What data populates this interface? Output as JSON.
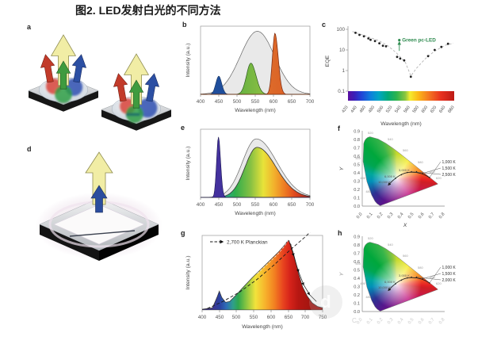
{
  "figure_title": "图2.  LED发射白光的不同方法",
  "colors": {
    "blue_peak": "#1f4e9c",
    "green_peak": "#2f9e44",
    "orange_peak": "#e0641f",
    "envelope_gray": "#e7e7e7",
    "annotation_green": "#2e8b4f",
    "yellow_arrow": "#f1eda5"
  },
  "watermark": {
    "letter": "d",
    "stray_mark": "C"
  },
  "panels": {
    "a": {
      "label": "a"
    },
    "b": {
      "label": "b",
      "xlabel": "Wavelength (nm)",
      "ylabel": "Intensity (a.u.)",
      "x_ticks": [
        "400",
        "450",
        "500",
        "550",
        "600",
        "650",
        "700"
      ]
    },
    "c": {
      "label": "c",
      "xlabel": "Wavelength (nm)",
      "ylabel": "EQE",
      "y_ticks": [
        "100",
        "10",
        "1",
        "0.1"
      ],
      "x_ticks": [
        "420",
        "440",
        "460",
        "480",
        "500",
        "520",
        "540",
        "560",
        "580",
        "600",
        "620",
        "640",
        "660"
      ],
      "annotation": "Green pc-LED"
    },
    "d": {
      "label": "d"
    },
    "e": {
      "label": "e",
      "xlabel": "Wavelength (nm)",
      "ylabel": "Intensity (a.u.)",
      "x_ticks": [
        "400",
        "450",
        "500",
        "550",
        "600",
        "650",
        "700"
      ]
    },
    "f": {
      "label": "f",
      "xlabel": "X",
      "ylabel": "Y",
      "x_ticks": [
        "0.0",
        "0.1",
        "0.2",
        "0.3",
        "0.4",
        "0.5",
        "0.6",
        "0.7",
        "0.8"
      ],
      "y_ticks": [
        "0.9",
        "0.8",
        "0.7",
        "0.6",
        "0.5",
        "0.4",
        "0.3",
        "0.2",
        "0.1",
        "0.0"
      ],
      "callouts": [
        "1,000 K",
        "1,500 K",
        "2,500 K"
      ],
      "locus_labels": [
        "3,000 K",
        "6,000 K",
        "10,000 K"
      ],
      "spectral_labels": [
        "520",
        "540",
        "560",
        "580",
        "600",
        "620",
        "500",
        "490",
        "480"
      ]
    },
    "g": {
      "label": "g",
      "xlabel": "Wavelength (nm)",
      "ylabel": "Intensity (a.u.)",
      "legend": "2,700 K Planckian",
      "x_ticks": [
        "400",
        "450",
        "500",
        "550",
        "600",
        "650",
        "700",
        "750"
      ]
    },
    "h": {
      "label": "h",
      "ylabel": "Y",
      "x_ticks": [
        "0.0",
        "0.1",
        "0.2",
        "0.3",
        "0.4",
        "0.5",
        "0.6",
        "0.7",
        "0.8"
      ],
      "y_ticks": [
        "0.9",
        "0.8",
        "0.7",
        "0.6",
        "0.5",
        "0.4",
        "0.3",
        "0.2",
        "0.1",
        "0.0"
      ],
      "callouts": [
        "1,000 K",
        "1,500 K",
        "2,000 K"
      ],
      "locus_labels": [
        "3,000 K",
        "6,000 K",
        "10,000 K"
      ],
      "spectral_labels": [
        "520",
        "540",
        "560",
        "580",
        "600",
        "620",
        "500",
        "490",
        "480"
      ]
    }
  },
  "chart_data": [
    {
      "panel": "b",
      "type": "area",
      "xlabel": "Wavelength (nm)",
      "ylabel": "Intensity (a.u.)",
      "xlim": [
        400,
        700
      ],
      "grid": false,
      "series": [
        {
          "name": "white-light envelope",
          "shape": "gauss",
          "center": 556,
          "sigma_l": 47,
          "sigma_r": 47,
          "height": 0.97
        },
        {
          "name": "blue LED peak",
          "shape": "gauss",
          "center": 450,
          "sigma_l": 8,
          "sigma_r": 8,
          "height": 0.28
        },
        {
          "name": "green phosphor peak",
          "shape": "gauss",
          "center": 538,
          "sigma_l": 12,
          "sigma_r": 14,
          "height": 0.48
        },
        {
          "name": "orange-red phosphor peak",
          "shape": "gauss",
          "center": 604,
          "sigma_l": 7,
          "sigma_r": 9,
          "height": 0.94
        }
      ]
    },
    {
      "panel": "c",
      "type": "scatter",
      "xlabel": "Wavelength (nm)",
      "ylabel": "EQE",
      "y_scale": "log",
      "ylim": [
        0.1,
        100
      ],
      "xlim": [
        420,
        660
      ],
      "points": [
        [
          437,
          68
        ],
        [
          446,
          54
        ],
        [
          456,
          46
        ],
        [
          466,
          36
        ],
        [
          471,
          31
        ],
        [
          481,
          27
        ],
        [
          491,
          21
        ],
        [
          499,
          16
        ],
        [
          506,
          15
        ],
        [
          531,
          4.6
        ],
        [
          538,
          3.8
        ],
        [
          547,
          3.1
        ],
        [
          562,
          0.5
        ],
        [
          601,
          5
        ],
        [
          616,
          10
        ],
        [
          631,
          14
        ],
        [
          646,
          20
        ]
      ],
      "trend": {
        "x": [
          430,
          450,
          470,
          490,
          510,
          530,
          550,
          562,
          575,
          595,
          615,
          640,
          658
        ],
        "y": [
          78,
          56,
          40,
          28,
          16,
          7,
          2.4,
          0.55,
          1.3,
          3.8,
          8.5,
          17,
          21
        ]
      },
      "annotation": {
        "text": "Green pc-LED",
        "x": 536,
        "dot": 30,
        "from": 9,
        "to": 24
      }
    },
    {
      "panel": "e",
      "type": "area",
      "xlabel": "Wavelength (nm)",
      "ylabel": "Intensity (a.u.)",
      "xlim": [
        400,
        700
      ],
      "grid": false,
      "series": [
        {
          "name": "white-light envelope",
          "shape": "gauss",
          "center": 553,
          "sigma_l": 38,
          "sigma_r": 56,
          "height": 0.9
        },
        {
          "name": "broad phosphor band",
          "shape": "gauss",
          "center": 555,
          "sigma_l": 33,
          "sigma_r": 52,
          "height": 0.77
        },
        {
          "name": "blue LED peak",
          "shape": "gauss",
          "center": 449,
          "sigma_l": 5,
          "sigma_r": 6,
          "height": 0.93
        }
      ]
    },
    {
      "panel": "f",
      "type": "diagram-CIE1931",
      "xlabel": "X",
      "ylabel": "Y",
      "xlim": [
        0,
        0.8
      ],
      "ylim": [
        0,
        0.9
      ],
      "planckian_callouts": [
        "1,000 K",
        "1,500 K",
        "2,500 K"
      ],
      "planckian_interior": [
        "3,000 K",
        "6,000 K",
        "10,000 K"
      ],
      "spectral_locus_nm": [
        480,
        490,
        500,
        520,
        540,
        560,
        580,
        600,
        620
      ]
    },
    {
      "panel": "g",
      "type": "area",
      "xlabel": "Wavelength (nm)",
      "ylabel": "Intensity (a.u.)",
      "xlim": [
        400,
        750
      ],
      "legend": [
        "2,700 K Planckian"
      ],
      "series": [
        {
          "name": "broadband white spectrum",
          "shape": "poly",
          "closed": true,
          "x": [
            400,
            430,
            443,
            450,
            457,
            468,
            480,
            500,
            520,
            545,
            570,
            595,
            620,
            638,
            650,
            658,
            668,
            680,
            692,
            705,
            720,
            735,
            750
          ],
          "y": [
            0.01,
            0.03,
            0.18,
            0.27,
            0.18,
            0.11,
            0.12,
            0.22,
            0.33,
            0.46,
            0.58,
            0.7,
            0.82,
            0.92,
            1.0,
            0.94,
            0.76,
            0.52,
            0.33,
            0.2,
            0.1,
            0.05,
            0.03
          ]
        },
        {
          "name": "2700K Planckian curve",
          "shape": "poly",
          "x": [
            415,
            460,
            510,
            560,
            610,
            660,
            700,
            735
          ],
          "y": [
            0.02,
            0.12,
            0.26,
            0.44,
            0.65,
            0.88,
            1.05,
            1.22
          ]
        },
        {
          "name": "long-wavelength tail",
          "shape": "poly",
          "x": [
            652,
            666,
            680,
            695,
            712,
            732
          ],
          "y": [
            1.0,
            0.78,
            0.55,
            0.36,
            0.22,
            0.12
          ]
        },
        {
          "name": "white dashed guide",
          "shape": "poly",
          "x": [
            560,
            590,
            620,
            640,
            650,
            660,
            668
          ],
          "y": [
            0.52,
            0.66,
            0.8,
            0.92,
            1.0,
            0.93,
            0.78
          ]
        }
      ]
    },
    {
      "panel": "h",
      "type": "diagram-CIE1931",
      "xlabel": "X",
      "ylabel": "Y",
      "xlim": [
        0,
        0.8
      ],
      "ylim": [
        0,
        0.9
      ],
      "planckian_callouts": [
        "1,000 K",
        "1,500 K",
        "2,000 K"
      ],
      "planckian_interior": [
        "3,000 K",
        "6,000 K",
        "10,000 K"
      ],
      "spectral_locus_nm": [
        480,
        490,
        500,
        520,
        540,
        560,
        580,
        600,
        620
      ]
    }
  ]
}
